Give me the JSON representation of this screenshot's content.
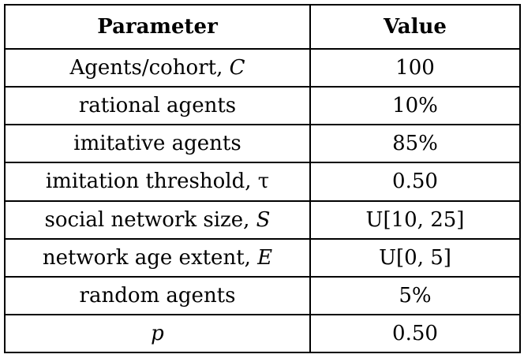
{
  "table": {
    "headers": {
      "parameter": "Parameter",
      "value": "Value"
    },
    "rows": [
      {
        "parameter": "Agents/cohort, ",
        "symbol": "C",
        "value": "100"
      },
      {
        "parameter": "rational agents",
        "symbol": "",
        "value": "10%"
      },
      {
        "parameter": "imitative agents",
        "symbol": "",
        "value": "85%"
      },
      {
        "parameter": "imitation threshold, ",
        "symbol": "τ",
        "value": "0.50"
      },
      {
        "parameter": "social network size, ",
        "symbol": "S",
        "value": "U[10, 25]"
      },
      {
        "parameter": "network age extent, ",
        "symbol": "E",
        "value": "U[0, 5]"
      },
      {
        "parameter": "random agents",
        "symbol": "",
        "value": "5%"
      },
      {
        "parameter": "",
        "symbol": "p",
        "value": "0.50"
      }
    ]
  }
}
